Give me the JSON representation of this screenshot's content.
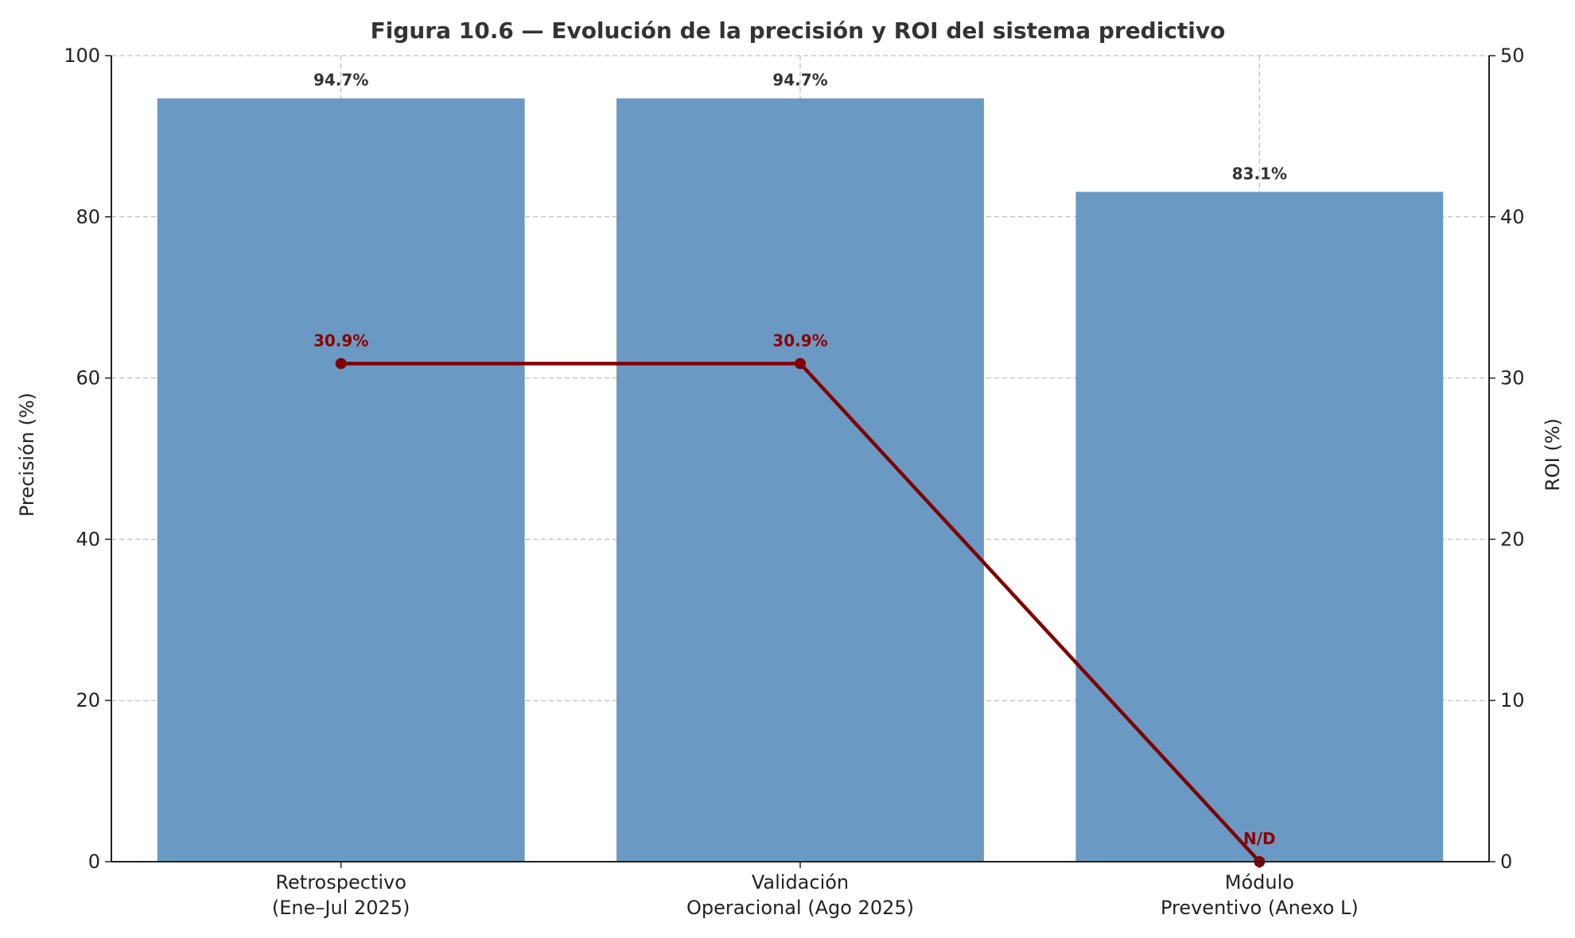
{
  "chart_data": {
    "type": "bar",
    "title": "Figura 10.6 — Evolución de la precisión y ROI del sistema predictivo",
    "categories": [
      [
        "Retrospectivo",
        "(Ene–Jul 2025)"
      ],
      [
        "Validación",
        "Operacional (Ago 2025)"
      ],
      [
        "Módulo",
        "Preventivo (Anexo L)"
      ]
    ],
    "series": [
      {
        "values": [
          94.7,
          94.7,
          83.1
        ],
        "labels": [
          "94.7%",
          "94.7%",
          "83.1%"
        ],
        "axis": "left",
        "kind": "bar",
        "color": "#6a9ac3"
      },
      {
        "values": [
          30.9,
          30.9,
          0
        ],
        "labels": [
          "30.9%",
          "30.9%",
          "N/D"
        ],
        "axis": "right",
        "kind": "line",
        "color": "#800000"
      }
    ],
    "ylabel": "Precisión (%)",
    "ylabel_right": "ROI (%)",
    "ylim": [
      0,
      100
    ],
    "ylim_right": [
      0,
      50
    ],
    "yticks": [
      "0",
      "20",
      "40",
      "60",
      "80",
      "100"
    ],
    "yticks_right": [
      "0",
      "10",
      "20",
      "30",
      "40",
      "50"
    ],
    "grid": true
  }
}
